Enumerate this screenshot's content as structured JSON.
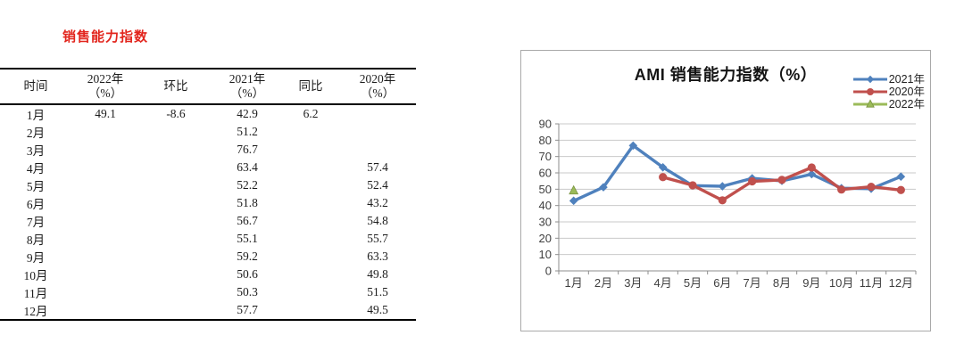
{
  "left_panel": {
    "title": "销售能力指数",
    "title_color": "#e2251d",
    "table": {
      "columns": [
        "时间",
        "2022年\n（%）",
        "环比",
        "2021年\n（%）",
        "同比",
        "2020年\n（%）"
      ],
      "rows": [
        [
          "1月",
          "49.1",
          "-8.6",
          "42.9",
          "6.2",
          ""
        ],
        [
          "2月",
          "",
          "",
          "51.2",
          "",
          ""
        ],
        [
          "3月",
          "",
          "",
          "76.7",
          "",
          ""
        ],
        [
          "4月",
          "",
          "",
          "63.4",
          "",
          "57.4"
        ],
        [
          "5月",
          "",
          "",
          "52.2",
          "",
          "52.4"
        ],
        [
          "6月",
          "",
          "",
          "51.8",
          "",
          "43.2"
        ],
        [
          "7月",
          "",
          "",
          "56.7",
          "",
          "54.8"
        ],
        [
          "8月",
          "",
          "",
          "55.1",
          "",
          "55.7"
        ],
        [
          "9月",
          "",
          "",
          "59.2",
          "",
          "63.3"
        ],
        [
          "10月",
          "",
          "",
          "50.6",
          "",
          "49.8"
        ],
        [
          "11月",
          "",
          "",
          "50.3",
          "",
          "51.5"
        ],
        [
          "12月",
          "",
          "",
          "57.7",
          "",
          "49.5"
        ]
      ]
    }
  },
  "chart_data": {
    "type": "line",
    "title": "AMI 销售能力指数（%）",
    "categories": [
      "1月",
      "2月",
      "3月",
      "4月",
      "5月",
      "6月",
      "7月",
      "8月",
      "9月",
      "10月",
      "11月",
      "12月"
    ],
    "series": [
      {
        "name": "2021年",
        "color": "#4F81BD",
        "marker": "diamond",
        "values": [
          42.9,
          51.2,
          76.7,
          63.4,
          52.2,
          51.8,
          56.7,
          55.1,
          59.2,
          50.6,
          50.3,
          57.7
        ]
      },
      {
        "name": "2020年",
        "color": "#C0504D",
        "marker": "circle",
        "values": [
          null,
          null,
          null,
          57.4,
          52.4,
          43.2,
          54.8,
          55.7,
          63.3,
          49.8,
          51.5,
          49.5
        ]
      },
      {
        "name": "2022年",
        "color": "#9BBB59",
        "marker": "triangle",
        "values": [
          49.1,
          null,
          null,
          null,
          null,
          null,
          null,
          null,
          null,
          null,
          null,
          null
        ]
      }
    ],
    "ylim": [
      0,
      90
    ],
    "ytick_step": 10,
    "grid": true,
    "legend_position": "top-right",
    "colors": {
      "grid": "#c9c9c9",
      "axis": "#8e8e8e",
      "tick_label": "#3f3f3f"
    }
  }
}
